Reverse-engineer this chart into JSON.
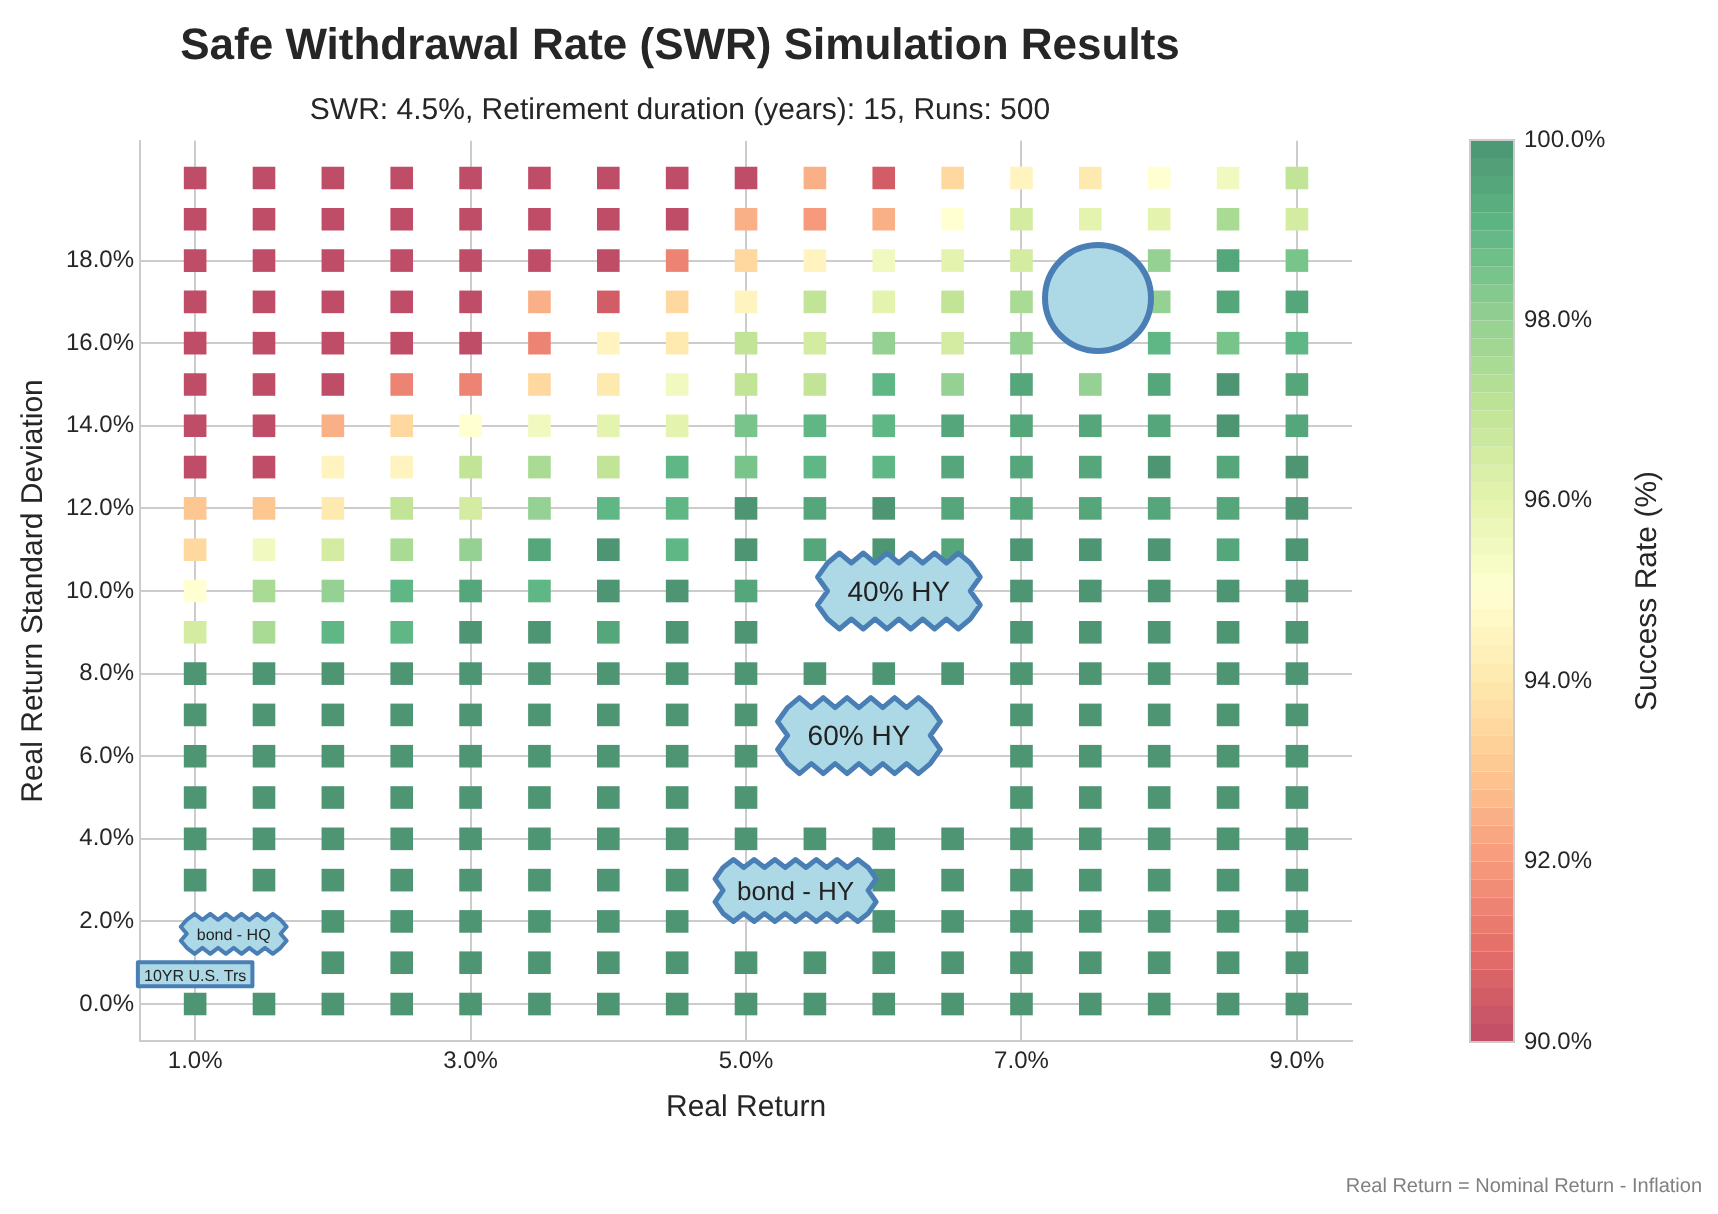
{
  "chart_data": {
    "type": "scatter",
    "title": "Safe Withdrawal Rate (SWR) Simulation Results",
    "subtitle": "SWR: 4.5%, Retirement duration (years): 15, Runs: 500",
    "xlabel": "Real Return",
    "ylabel": "Real Return Standard Deviation",
    "clabel": "Success Rate (%)",
    "x": [
      1,
      1.5,
      2,
      2.5,
      3,
      3.5,
      4,
      4.5,
      5,
      5.5,
      6,
      6.5,
      7,
      7.5,
      8,
      8.5,
      9,
      1,
      1.5,
      2,
      2.5,
      3,
      3.5,
      4,
      4.5,
      5,
      5.5,
      6,
      6.5,
      7,
      7.5,
      8,
      8.5,
      9,
      1,
      1.5,
      2,
      2.5,
      3,
      3.5,
      4,
      4.5,
      5,
      5.5,
      6,
      6.5,
      7,
      8,
      8.5,
      9,
      1,
      1.5,
      2,
      2.5,
      3,
      3.5,
      4,
      4.5,
      5,
      5.5,
      6,
      6.5,
      7,
      8,
      8.5,
      9,
      1,
      1.5,
      2,
      2.5,
      3,
      3.5,
      4,
      4.5,
      5,
      5.5,
      6,
      6.5,
      7,
      8,
      8.5,
      9,
      1,
      1.5,
      2,
      2.5,
      3,
      3.5,
      4,
      4.5,
      5,
      5.5,
      6,
      6.5,
      7,
      7.5,
      8,
      8.5,
      9,
      1,
      1.5,
      2,
      2.5,
      3,
      3.5,
      4,
      4.5,
      5,
      5.5,
      6,
      6.5,
      7,
      7.5,
      8,
      8.5,
      9,
      1,
      1.5,
      2,
      2.5,
      3,
      3.5,
      4,
      4.5,
      5,
      5.5,
      6,
      6.5,
      7,
      7.5,
      8,
      8.5,
      9,
      1,
      1.5,
      2,
      2.5,
      3,
      3.5,
      4,
      4.5,
      5,
      5.5,
      6,
      6.5,
      7,
      7.5,
      8,
      8.5,
      9,
      1,
      1.5,
      2,
      2.5,
      3,
      3.5,
      4,
      4.5,
      5,
      5.5,
      6,
      6.5,
      7,
      7.5,
      8,
      8.5,
      9,
      1,
      1.5,
      2,
      2.5,
      3,
      3.5,
      4,
      4.5,
      5,
      7,
      7.5,
      8,
      8.5,
      9,
      1,
      1.5,
      2,
      2.5,
      3,
      3.5,
      4,
      4.5,
      5,
      7,
      7.5,
      8,
      8.5,
      9,
      1,
      1.5,
      2,
      2.5,
      3,
      3.5,
      4,
      4.5,
      5,
      5.5,
      6,
      6.5,
      7,
      7.5,
      8,
      8.5,
      9,
      1,
      1.5,
      2,
      2.5,
      3,
      3.5,
      4,
      4.5,
      5,
      7,
      7.5,
      8,
      8.5,
      9,
      1,
      1.5,
      2,
      2.5,
      3,
      3.5,
      4,
      4.5,
      5,
      7,
      7.5,
      8,
      8.5,
      9,
      1,
      1.5,
      2,
      2.5,
      3,
      3.5,
      4,
      4.5,
      5,
      7,
      7.5,
      8,
      8.5,
      9,
      1,
      1.5,
      2,
      2.5,
      3,
      3.5,
      4,
      4.5,
      5,
      5.5,
      6,
      6.5,
      7,
      7.5,
      8,
      8.5,
      9,
      1,
      1.5,
      2,
      2.5,
      3,
      3.5,
      4,
      4.5,
      6,
      6.5,
      7,
      7.5,
      8,
      8.5,
      9,
      2,
      2.5,
      3,
      3.5,
      4,
      4.5,
      6,
      6.5,
      7,
      7.5,
      8,
      8.5,
      9,
      2,
      2.5,
      3,
      3.5,
      4,
      4.5,
      5,
      5.5,
      6,
      6.5,
      7,
      7.5,
      8,
      8.5,
      9,
      1,
      1.5,
      2,
      2.5,
      3,
      3.5,
      4,
      4.5,
      5,
      5.5,
      6,
      6.5,
      7,
      7.5,
      8,
      8.5,
      9
    ],
    "values": [
      20,
      20,
      20,
      20,
      20,
      20,
      20,
      20,
      20,
      20,
      20,
      20,
      20,
      20,
      20,
      20,
      20,
      19,
      19,
      19,
      19,
      19,
      19,
      19,
      19,
      19,
      19,
      19,
      19,
      19,
      19,
      19,
      19,
      19,
      18,
      18,
      18,
      18,
      18,
      18,
      18,
      18,
      18,
      18,
      18,
      18,
      18,
      18,
      18,
      18,
      17,
      17,
      17,
      17,
      17,
      17,
      17,
      17,
      17,
      17,
      17,
      17,
      17,
      17,
      17,
      17,
      16,
      16,
      16,
      16,
      16,
      16,
      16,
      16,
      16,
      16,
      16,
      16,
      16,
      16,
      16,
      16,
      15,
      15,
      15,
      15,
      15,
      15,
      15,
      15,
      15,
      15,
      15,
      15,
      15,
      15,
      15,
      15,
      15,
      14,
      14,
      14,
      14,
      14,
      14,
      14,
      14,
      14,
      14,
      14,
      14,
      14,
      14,
      14,
      14,
      14,
      13,
      13,
      13,
      13,
      13,
      13,
      13,
      13,
      13,
      13,
      13,
      13,
      13,
      13,
      13,
      13,
      13,
      12,
      12,
      12,
      12,
      12,
      12,
      12,
      12,
      12,
      12,
      12,
      12,
      12,
      12,
      12,
      12,
      12,
      11,
      11,
      11,
      11,
      11,
      11,
      11,
      11,
      11,
      11,
      11,
      11,
      11,
      11,
      11,
      11,
      11,
      10,
      10,
      10,
      10,
      10,
      10,
      10,
      10,
      10,
      10,
      10,
      10,
      10,
      10,
      9,
      9,
      9,
      9,
      9,
      9,
      9,
      9,
      9,
      9,
      9,
      9,
      9,
      9,
      8,
      8,
      8,
      8,
      8,
      8,
      8,
      8,
      8,
      8,
      8,
      8,
      8,
      8,
      8,
      8,
      8,
      7,
      7,
      7,
      7,
      7,
      7,
      7,
      7,
      7,
      7,
      7,
      7,
      7,
      7,
      6,
      6,
      6,
      6,
      6,
      6,
      6,
      6,
      6,
      6,
      6,
      6,
      6,
      6,
      5,
      5,
      5,
      5,
      5,
      5,
      5,
      5,
      5,
      5,
      5,
      5,
      5,
      5,
      4,
      4,
      4,
      4,
      4,
      4,
      4,
      4,
      4,
      4,
      4,
      4,
      4,
      4,
      4,
      4,
      4,
      3,
      3,
      3,
      3,
      3,
      3,
      3,
      3,
      3,
      3,
      3,
      3,
      3,
      3,
      3,
      2,
      2,
      2,
      2,
      2,
      2,
      2,
      2,
      2,
      2,
      2,
      2,
      2,
      1,
      1,
      1,
      1,
      1,
      1,
      1,
      1,
      1,
      1,
      1,
      1,
      1,
      1,
      1,
      0,
      0,
      0,
      0,
      0,
      0,
      0,
      0,
      0,
      0,
      0,
      0,
      0,
      0,
      0,
      0,
      0
    ],
    "cvalues": [
      90,
      90,
      90,
      90,
      90,
      90,
      90,
      90,
      90,
      92.5,
      90.5,
      93.5,
      94.5,
      94,
      95,
      95.5,
      97,
      90,
      90,
      90,
      90,
      90,
      90,
      90,
      90,
      92.5,
      92,
      92.5,
      95,
      96.5,
      96,
      96,
      97.5,
      96.5,
      90,
      90,
      90,
      90,
      90,
      90,
      90,
      91.5,
      93.5,
      94.5,
      95.5,
      96,
      96.5,
      98,
      99.5,
      98.5,
      90,
      90,
      90,
      90,
      90,
      92.5,
      90.5,
      93.5,
      94.5,
      97,
      96,
      97,
      97.5,
      98,
      99.5,
      99.5,
      90,
      90,
      90,
      90,
      90,
      91.5,
      94.5,
      94,
      97,
      96.5,
      98,
      96.5,
      98,
      99,
      98.5,
      99,
      90,
      90,
      90,
      91.5,
      91.5,
      93.5,
      94,
      95.5,
      97,
      97,
      99,
      98,
      99.5,
      98,
      99.5,
      100,
      99.5,
      90,
      90,
      92.5,
      93.5,
      95,
      95.5,
      96,
      96,
      98.5,
      99,
      99,
      99.5,
      99.5,
      99.5,
      99.5,
      100,
      99.5,
      90,
      90,
      94.5,
      94.5,
      97,
      97.5,
      97,
      99,
      98.5,
      99,
      99,
      99.5,
      99.5,
      99.5,
      100,
      99.5,
      100,
      93,
      93,
      94,
      97,
      96.5,
      98,
      99,
      99,
      100,
      99.5,
      100,
      99.5,
      99.5,
      99.5,
      99.5,
      99.5,
      100,
      93.5,
      95.5,
      96.5,
      97.5,
      98,
      99.5,
      100,
      99,
      100,
      99.5,
      100,
      99.5,
      100,
      100,
      100,
      99.5,
      100,
      95,
      97.5,
      98,
      99,
      99.5,
      99,
      100,
      100,
      99.5,
      100,
      100,
      100,
      100,
      100,
      96.5,
      97.5,
      99,
      99,
      100,
      100,
      99.5,
      100,
      100,
      100,
      100,
      100,
      100,
      100,
      100,
      100,
      100,
      100,
      100,
      100,
      100,
      100,
      100,
      100,
      100,
      100,
      100,
      100,
      100,
      100,
      100,
      100,
      100,
      100,
      100,
      100,
      100,
      100,
      100,
      100,
      100,
      100,
      100,
      100,
      100,
      100,
      100,
      100,
      100,
      100,
      100,
      100,
      100,
      100,
      100,
      100,
      100,
      100,
      100,
      100,
      100,
      100,
      100,
      100,
      100,
      100,
      100,
      100,
      100,
      100,
      100,
      100,
      100,
      100,
      100,
      100,
      100,
      100,
      100,
      100,
      100,
      100,
      100,
      100,
      100,
      100,
      100,
      100,
      100,
      100,
      100,
      100,
      100,
      100,
      100,
      100,
      100,
      100,
      100,
      100,
      100,
      100,
      100,
      100,
      100,
      100,
      100,
      100,
      100,
      100,
      100,
      100,
      100,
      100,
      100,
      100,
      100,
      100,
      100,
      100,
      100,
      100,
      100,
      100,
      100,
      100,
      100,
      100,
      100,
      100,
      100,
      100,
      100,
      100,
      100,
      100,
      100,
      100,
      100,
      100,
      100,
      100,
      100,
      100,
      100,
      100,
      100,
      100,
      100,
      100
    ],
    "clim": [
      90,
      100
    ],
    "cticks": [
      {
        "value": 90,
        "label": "90.0%"
      },
      {
        "value": 92,
        "label": "92.0%"
      },
      {
        "value": 94,
        "label": "94.0%"
      },
      {
        "value": 96,
        "label": "96.0%"
      },
      {
        "value": 98,
        "label": "98.0%"
      },
      {
        "value": 100,
        "label": "100.0%"
      }
    ],
    "xlim": [
      0.6,
      9.4
    ],
    "xticks": [
      {
        "value": 1,
        "label": "1.0%"
      },
      {
        "value": 3,
        "label": "3.0%"
      },
      {
        "value": 5,
        "label": "5.0%"
      },
      {
        "value": 7,
        "label": "7.0%"
      },
      {
        "value": 9,
        "label": "9.0%"
      }
    ],
    "ylim": [
      -0.9,
      20.9
    ],
    "yticks": [
      {
        "value": 0,
        "label": "0.0%"
      },
      {
        "value": 2,
        "label": "2.0%"
      },
      {
        "value": 4,
        "label": "4.0%"
      },
      {
        "value": 6,
        "label": "6.0%"
      },
      {
        "value": 8,
        "label": "8.0%"
      },
      {
        "value": 10,
        "label": "10.0%"
      },
      {
        "value": 12,
        "label": "12.0%"
      },
      {
        "value": 14,
        "label": "14.0%"
      },
      {
        "value": 16,
        "label": "16.0%"
      },
      {
        "value": 18,
        "label": "18.0%"
      }
    ],
    "grid": true,
    "marker": "square",
    "annotations": [
      "40% HY",
      "60% HY",
      "bond - HY",
      "bond - HQ",
      "10YR U.S. Trs",
      "Real Return = Nominal Return - Inflation"
    ]
  }
}
